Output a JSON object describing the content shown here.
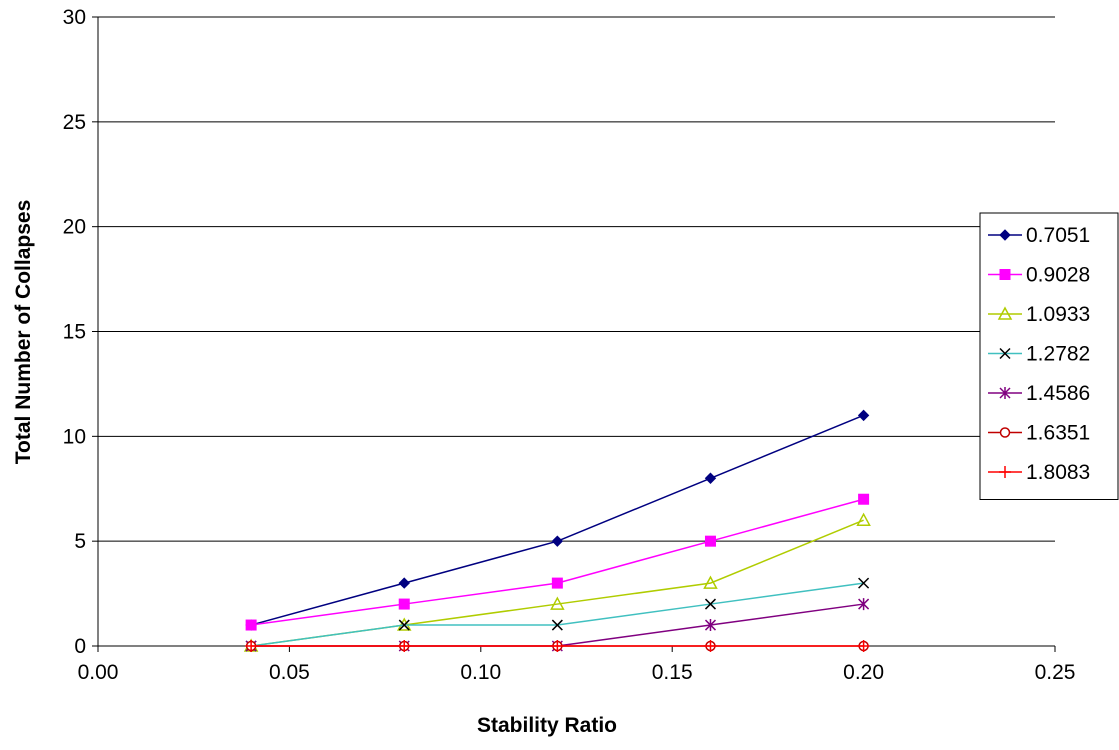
{
  "chart_data": {
    "type": "line",
    "title": "",
    "xlabel": "Stability Ratio",
    "ylabel": "Total Number of Collapses",
    "xlim": [
      0.0,
      0.25
    ],
    "ylim": [
      0,
      30
    ],
    "xticks": [
      "0.00",
      "0.05",
      "0.10",
      "0.15",
      "0.20",
      "0.25"
    ],
    "yticks": [
      "0",
      "5",
      "10",
      "15",
      "20",
      "25",
      "30"
    ],
    "grid": "horizontal",
    "legend_position": "right",
    "x": [
      0.04,
      0.08,
      0.12,
      0.16,
      0.2
    ],
    "series": [
      {
        "name": "0.7051",
        "values": [
          1,
          3,
          5,
          8,
          11
        ],
        "color": "#000080",
        "marker": "diamond"
      },
      {
        "name": "0.9028",
        "values": [
          1,
          2,
          3,
          5,
          7
        ],
        "color": "#FF00FF",
        "marker": "square"
      },
      {
        "name": "1.0933",
        "values": [
          0,
          1,
          2,
          3,
          6
        ],
        "color": "#B0CC00",
        "marker": "triangle"
      },
      {
        "name": "1.2782",
        "values": [
          0,
          1,
          1,
          2,
          3
        ],
        "color": "#40C0C0",
        "marker": "x"
      },
      {
        "name": "1.4586",
        "values": [
          0,
          0,
          0,
          1,
          2
        ],
        "color": "#800080",
        "marker": "star"
      },
      {
        "name": "1.6351",
        "values": [
          0,
          0,
          0,
          0,
          0
        ],
        "color": "#C00000",
        "marker": "circle"
      },
      {
        "name": "1.8083",
        "values": [
          0,
          0,
          0,
          0,
          0
        ],
        "color": "#FF0000",
        "marker": "plus"
      }
    ]
  }
}
